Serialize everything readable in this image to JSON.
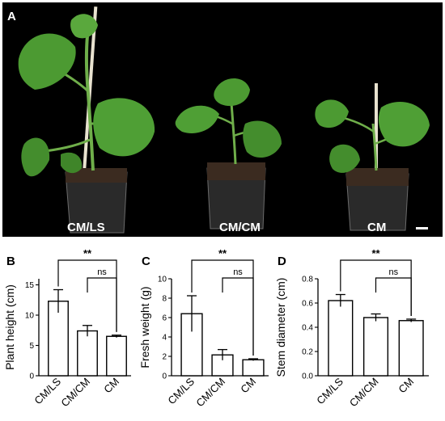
{
  "photo": {
    "panel_letter": "A",
    "labels": [
      "CM/LS",
      "CM/CM",
      "CM"
    ],
    "background": "#000000",
    "leaf_color": "#4c9a32"
  },
  "chart_data": [
    {
      "type": "bar",
      "panel_letter": "B",
      "categories": [
        "CM/LS",
        "CM/CM",
        "CM"
      ],
      "values": [
        12.3,
        7.4,
        6.5
      ],
      "errors": [
        1.9,
        0.9,
        0.2
      ],
      "ylabel": "Plant height (cm)",
      "ylim": [
        0,
        16
      ],
      "yticks": [
        "0",
        "5",
        "10",
        "15"
      ],
      "ytick_values": [
        0,
        5,
        10,
        15
      ],
      "significance": [
        {
          "from": 0,
          "to": 2,
          "label": "**"
        },
        {
          "from": 1,
          "to": 2,
          "label": "ns"
        }
      ]
    },
    {
      "type": "bar",
      "panel_letter": "C",
      "categories": [
        "CM/LS",
        "CM/CM",
        "CM"
      ],
      "values": [
        6.4,
        2.15,
        1.65
      ],
      "errors": [
        1.85,
        0.55,
        0.1
      ],
      "ylabel": "Fresh weight (g)",
      "ylim": [
        0,
        10
      ],
      "yticks": [
        "0",
        "2",
        "4",
        "6",
        "8",
        "10"
      ],
      "ytick_values": [
        0,
        2,
        4,
        6,
        8,
        10
      ],
      "significance": [
        {
          "from": 0,
          "to": 2,
          "label": "**"
        },
        {
          "from": 1,
          "to": 2,
          "label": "ns"
        }
      ]
    },
    {
      "type": "bar",
      "panel_letter": "D",
      "categories": [
        "CM/LS",
        "CM/CM",
        "CM"
      ],
      "values": [
        0.62,
        0.48,
        0.455
      ],
      "errors": [
        0.05,
        0.03,
        0.012
      ],
      "ylabel": "Stem diameter (cm)",
      "ylim": [
        0,
        0.8
      ],
      "yticks": [
        "0.0",
        "0.2",
        "0.4",
        "0.6",
        "0.8"
      ],
      "ytick_values": [
        0,
        0.2,
        0.4,
        0.6,
        0.8
      ],
      "significance": [
        {
          "from": 0,
          "to": 2,
          "label": "**"
        },
        {
          "from": 1,
          "to": 2,
          "label": "ns"
        }
      ]
    }
  ]
}
